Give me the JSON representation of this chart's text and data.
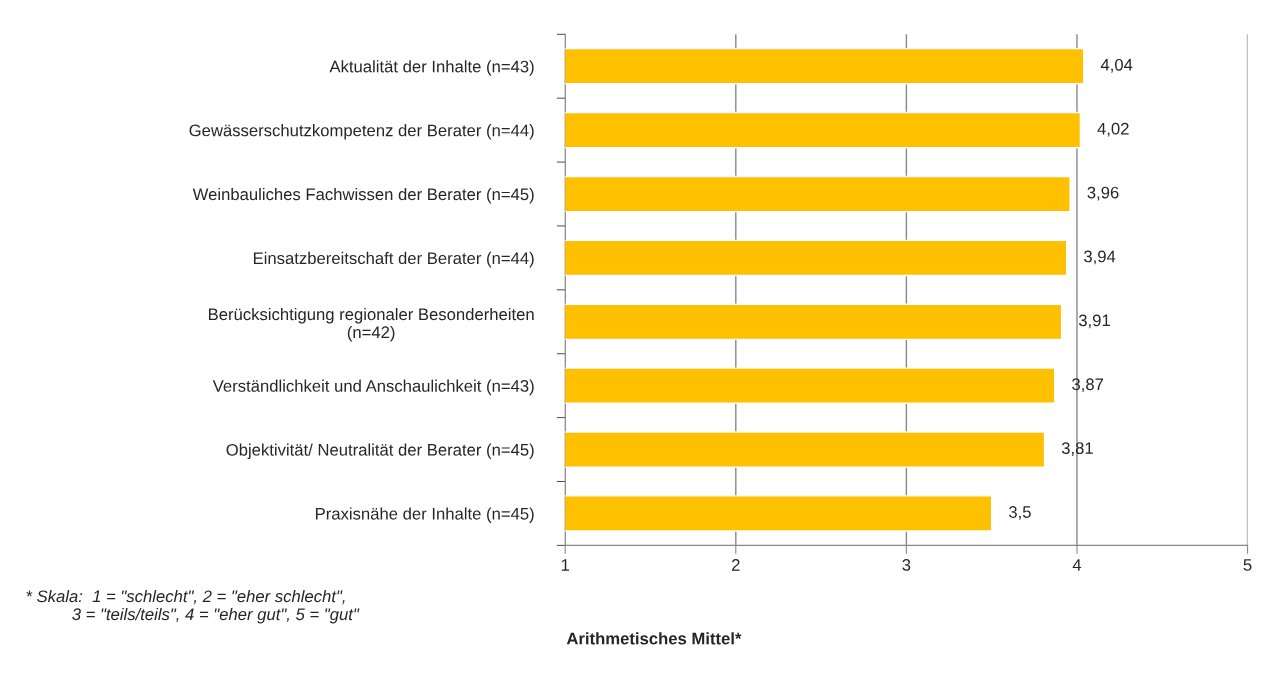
{
  "chart_data": {
    "type": "bar",
    "orientation": "horizontal",
    "categories": [
      "Aktualität der Inhalte (n=43)",
      "Gewässerschutzkompetenz der Berater (n=44)",
      "Weinbauliches Fachwissen der Berater (n=45)",
      "Einsatzbereitschaft der Berater (n=44)",
      "Berücksichtigung regionaler Besonderheiten\n(n=42)",
      "Verständlichkeit und Anschaulichkeit (n=43)",
      "Objektivität/ Neutralität der Berater (n=45)",
      "Praxisnähe der Inhalte (n=45)"
    ],
    "values": [
      4.04,
      4.02,
      3.96,
      3.94,
      3.91,
      3.87,
      3.81,
      3.5
    ],
    "value_labels": [
      "4,04",
      "4,02",
      "3,96",
      "3,94",
      "3,91",
      "3,87",
      "3,81",
      "3,5"
    ],
    "color": "#ffc000",
    "xlim": [
      1,
      5
    ],
    "xticks": [
      1,
      2,
      3,
      4,
      5
    ],
    "grid": "x",
    "xlabel": "Arithmetisches Mittel*",
    "annotations": [
      "* Skala:  1 = \"schlecht\", 2 = \"eher schlecht\",\n          3 = \"teils/teils\", 4 = \"eher gut\", 5 = \"gut\""
    ]
  }
}
